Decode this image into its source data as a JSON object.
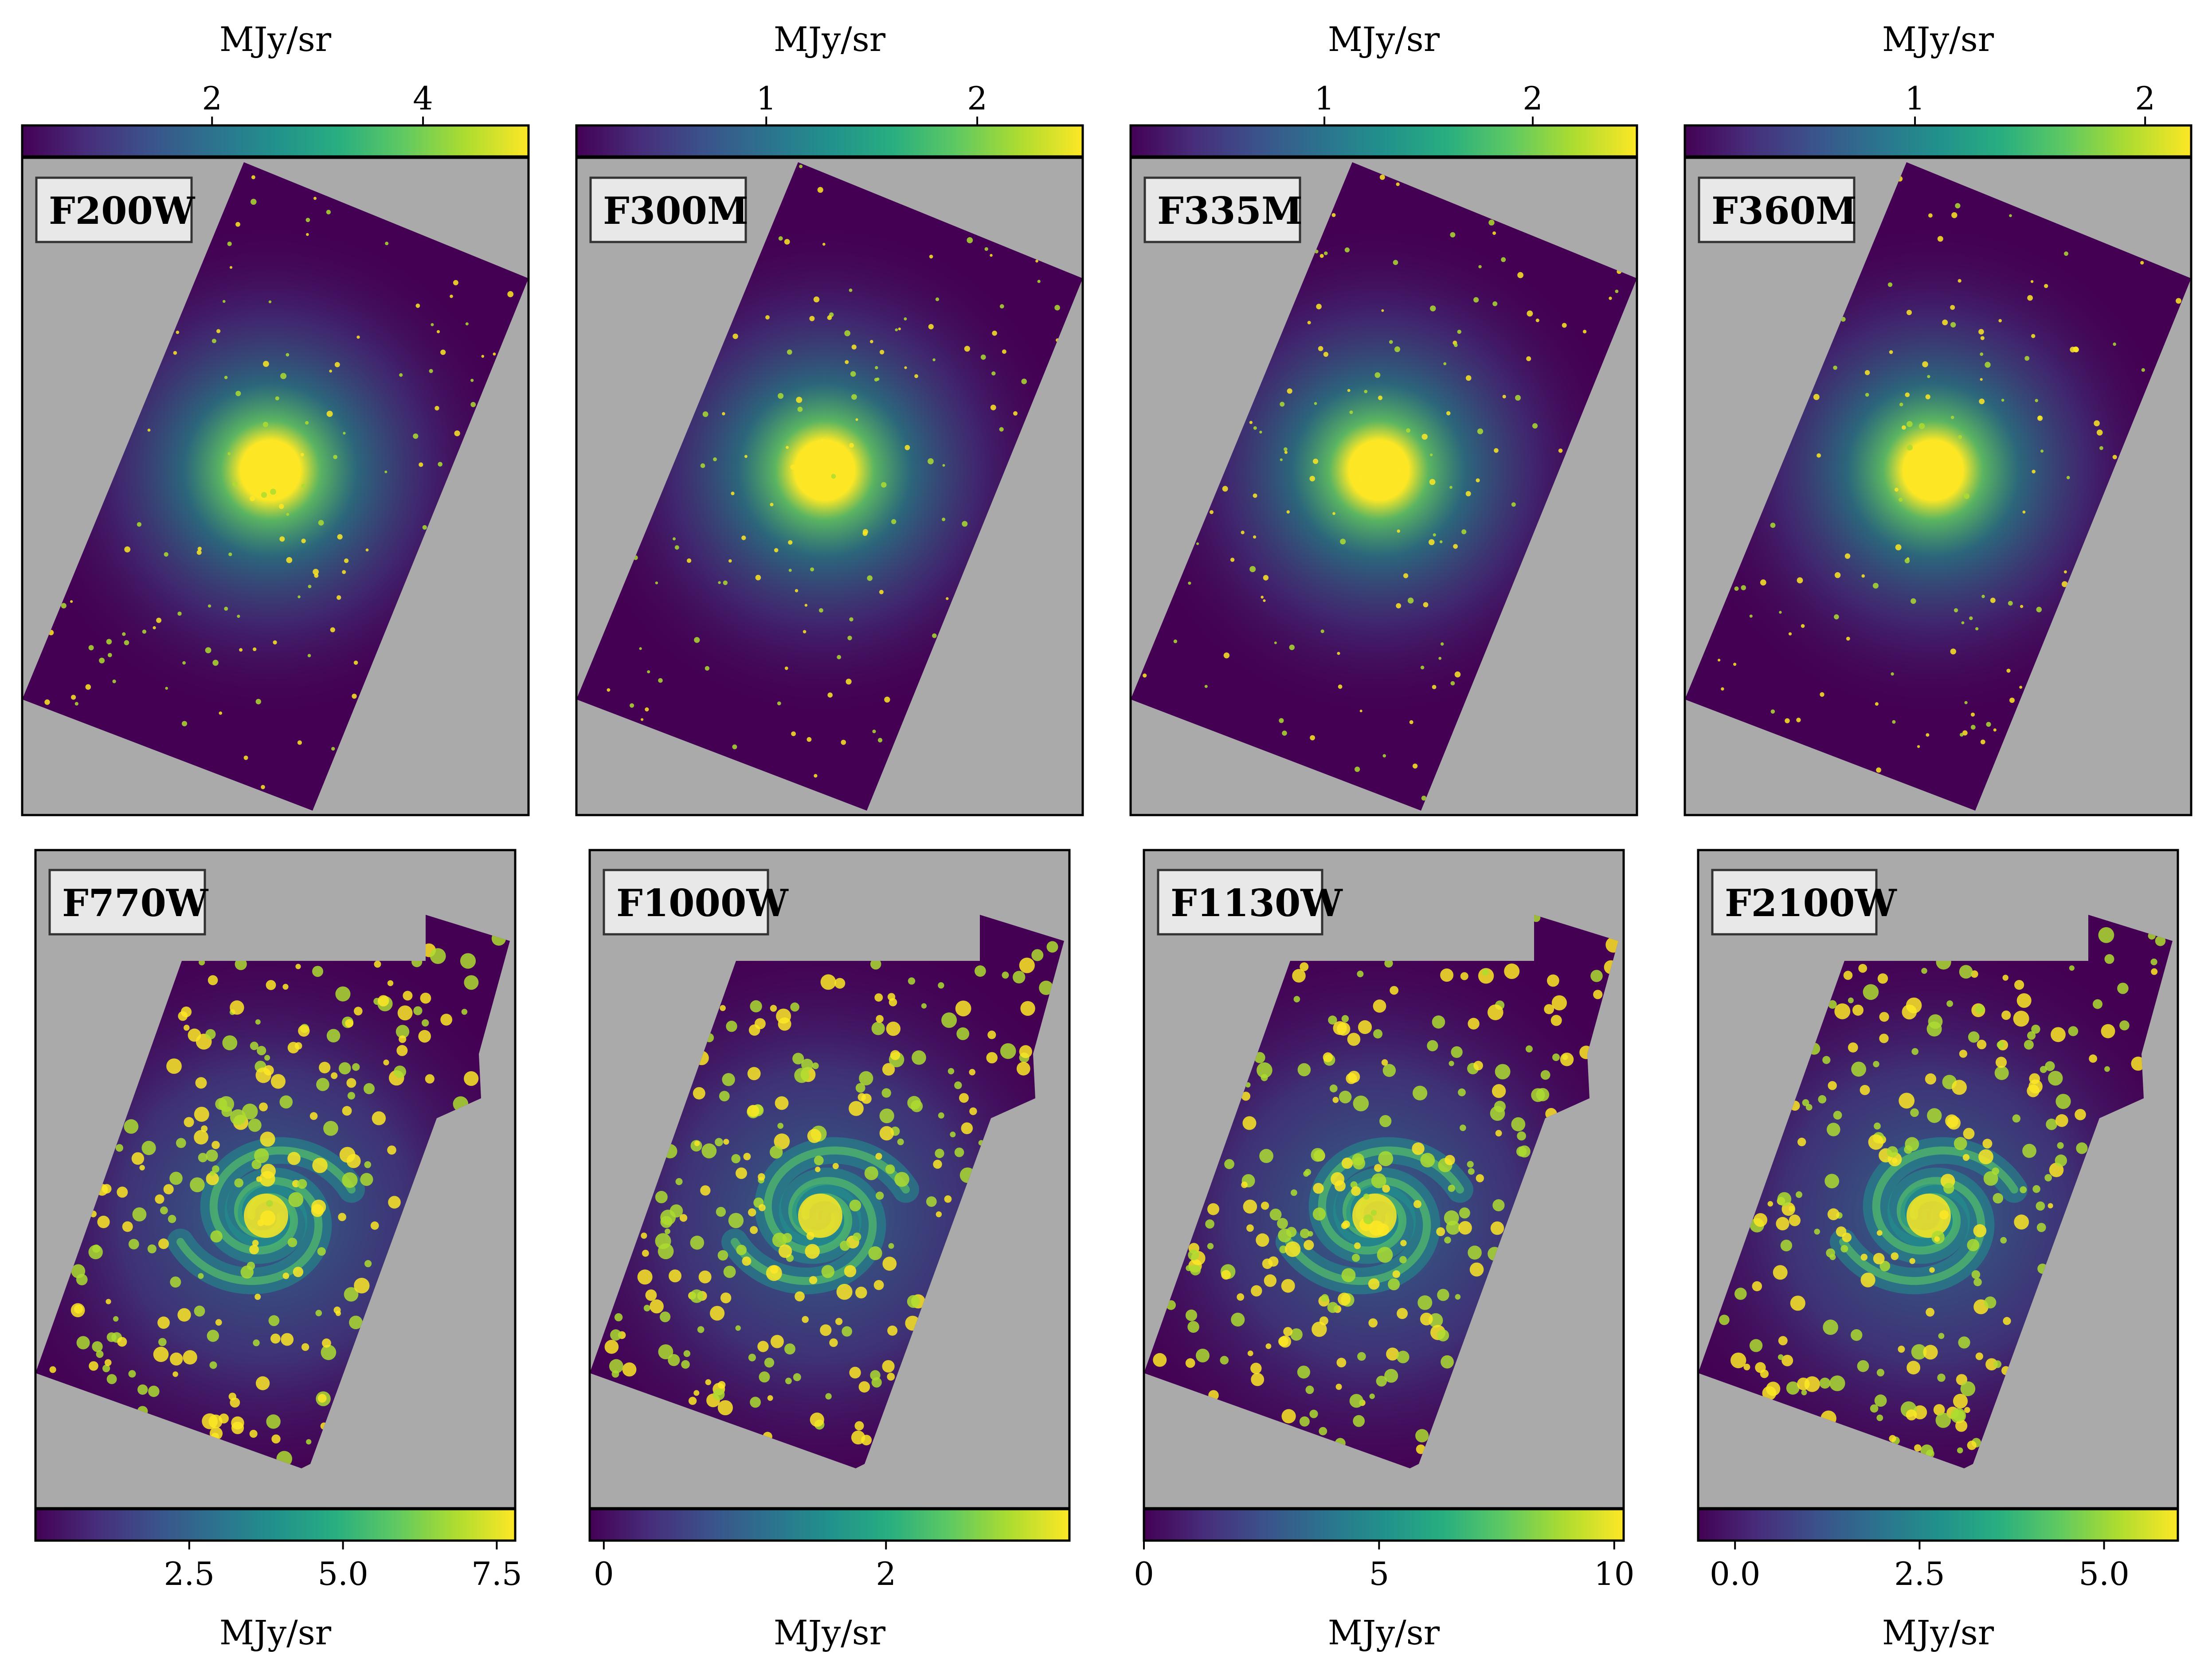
{
  "figure": {
    "colors": {
      "background": "#aaaaaa",
      "label_box": "#e8e8e8",
      "colormap": [
        "#440154",
        "#472d7b",
        "#3b528b",
        "#2c728e",
        "#21918c",
        "#28ae80",
        "#5ec962",
        "#addc30",
        "#fde725"
      ]
    },
    "panels": [
      {
        "filter": "F200W",
        "row": "top",
        "colorbar": {
          "unit": "MJy/sr",
          "min": 0.2,
          "max": 5.0,
          "ticks": [
            {
              "v": 2,
              "label": "2"
            },
            {
              "v": 4,
              "label": "4"
            }
          ]
        },
        "footprint": "rotated-rect",
        "galaxy": "bulge"
      },
      {
        "filter": "F300M",
        "row": "top",
        "colorbar": {
          "unit": "MJy/sr",
          "min": 0.1,
          "max": 2.5,
          "ticks": [
            {
              "v": 1,
              "label": "1"
            },
            {
              "v": 2,
              "label": "2"
            }
          ]
        },
        "footprint": "rotated-rect",
        "galaxy": "bulge"
      },
      {
        "filter": "F335M",
        "row": "top",
        "colorbar": {
          "unit": "MJy/sr",
          "min": 0.07,
          "max": 2.5,
          "ticks": [
            {
              "v": 1,
              "label": "1"
            },
            {
              "v": 2,
              "label": "2"
            }
          ]
        },
        "footprint": "rotated-rect",
        "galaxy": "bulge-arms"
      },
      {
        "filter": "F360M",
        "row": "top",
        "colorbar": {
          "unit": "MJy/sr",
          "min": 0.0,
          "max": 2.2,
          "ticks": [
            {
              "v": 1,
              "label": "1"
            },
            {
              "v": 2,
              "label": "2"
            }
          ]
        },
        "footprint": "rotated-rect",
        "galaxy": "bulge-arms"
      },
      {
        "filter": "F770W",
        "row": "bottom",
        "colorbar": {
          "unit": "MJy/sr",
          "min": 0.0,
          "max": 7.8,
          "ticks": [
            {
              "v": 2.5,
              "label": "2.5"
            },
            {
              "v": 5.0,
              "label": "5.0"
            },
            {
              "v": 7.5,
              "label": "7.5"
            }
          ]
        },
        "footprint": "rotated-rect-notch",
        "galaxy": "spiral"
      },
      {
        "filter": "F1000W",
        "row": "bottom",
        "colorbar": {
          "unit": "MJy/sr",
          "min": -0.1,
          "max": 3.3,
          "ticks": [
            {
              "v": 0,
              "label": "0"
            },
            {
              "v": 2,
              "label": "2"
            }
          ]
        },
        "footprint": "rotated-rect-notch",
        "galaxy": "spiral"
      },
      {
        "filter": "F1130W",
        "row": "bottom",
        "colorbar": {
          "unit": "MJy/sr",
          "min": 0.0,
          "max": 10.2,
          "ticks": [
            {
              "v": 0,
              "label": "0"
            },
            {
              "v": 5,
              "label": "5"
            },
            {
              "v": 10,
              "label": "10"
            }
          ]
        },
        "footprint": "rotated-rect-notch",
        "galaxy": "spiral"
      },
      {
        "filter": "F2100W",
        "row": "bottom",
        "colorbar": {
          "unit": "MJy/sr",
          "min": -0.5,
          "max": 6.0,
          "ticks": [
            {
              "v": 0.0,
              "label": "0.0"
            },
            {
              "v": 2.5,
              "label": "2.5"
            },
            {
              "v": 5.0,
              "label": "5.0"
            }
          ]
        },
        "footprint": "rotated-rect-notch",
        "galaxy": "spiral"
      }
    ]
  }
}
